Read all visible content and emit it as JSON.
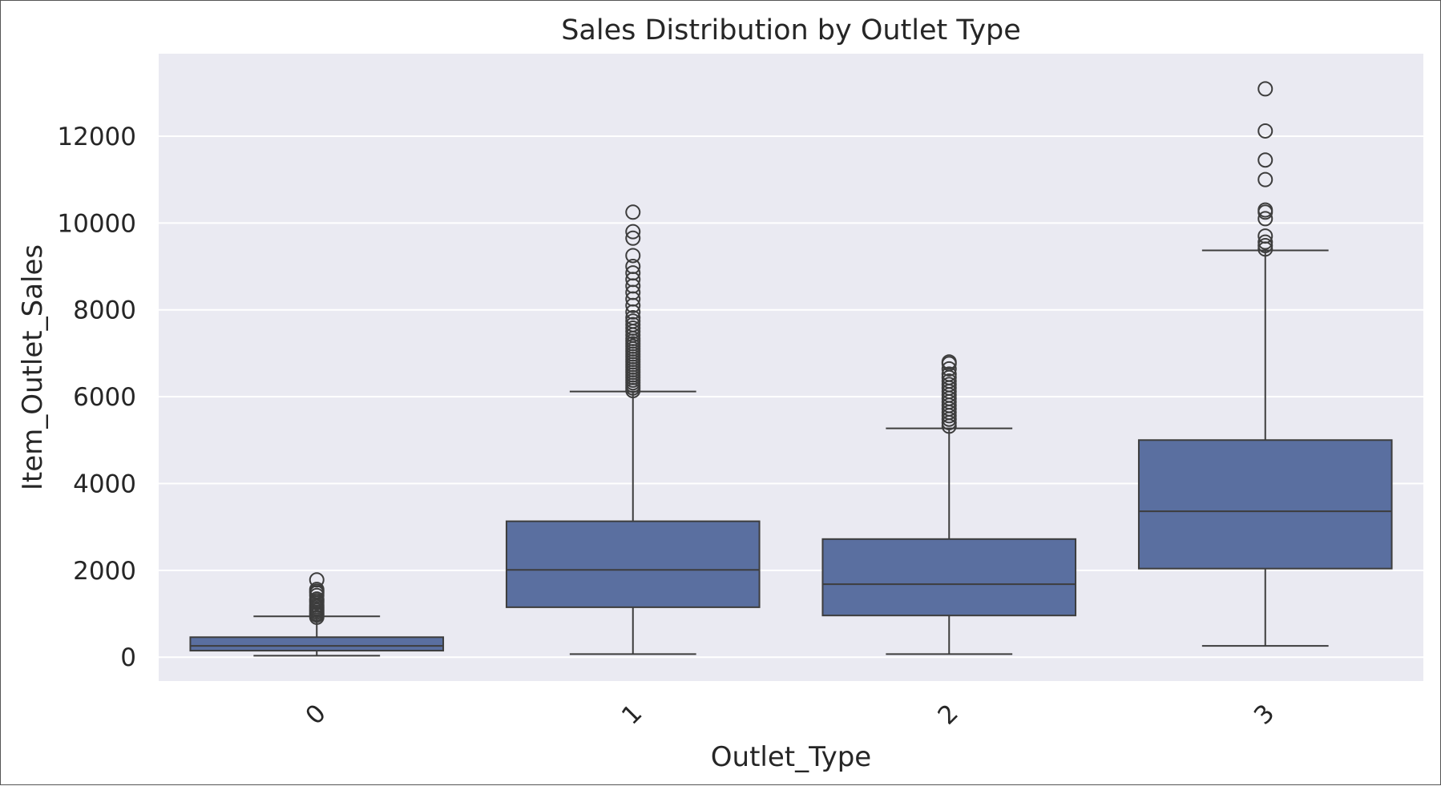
{
  "chart_data": {
    "type": "boxplot",
    "title": "Sales Distribution by Outlet Type",
    "xlabel": "Outlet_Type",
    "ylabel": "Item_Outlet_Sales",
    "ylim": [
      -550,
      13900
    ],
    "yticks": [
      0,
      2000,
      4000,
      6000,
      8000,
      10000,
      12000
    ],
    "ytick_labels": [
      "0",
      "2000",
      "4000",
      "6000",
      "8000",
      "10000",
      "12000"
    ],
    "categories": [
      "0",
      "1",
      "2",
      "3"
    ],
    "grid": true,
    "x_tick_rotation": 45,
    "box_color": "#5a6fa0",
    "line_color": "#3d3d3d",
    "background_color": "#eaeaf2",
    "boxes": [
      {
        "category": "0",
        "whisker_low": 33,
        "q1": 150,
        "median": 260,
        "q3": 460,
        "whisker_high": 940,
        "outliers": [
          920,
          970,
          1000,
          1040,
          1080,
          1120,
          1160,
          1200,
          1260,
          1300,
          1340,
          1420,
          1480,
          1520,
          1560,
          1780
        ]
      },
      {
        "category": "1",
        "whisker_low": 70,
        "q1": 1150,
        "median": 2010,
        "q3": 3130,
        "whisker_high": 6120,
        "outliers": [
          6140,
          6200,
          6260,
          6320,
          6380,
          6440,
          6500,
          6560,
          6620,
          6680,
          6740,
          6800,
          6860,
          6920,
          6980,
          7040,
          7100,
          7160,
          7220,
          7280,
          7340,
          7420,
          7500,
          7580,
          7660,
          7740,
          7820,
          7950,
          8100,
          8250,
          8400,
          8550,
          8700,
          8850,
          9000,
          9250,
          9650,
          9800,
          10250
        ]
      },
      {
        "category": "2",
        "whisker_low": 70,
        "q1": 960,
        "median": 1680,
        "q3": 2720,
        "whisker_high": 5270,
        "outliers": [
          5320,
          5400,
          5480,
          5560,
          5640,
          5720,
          5800,
          5880,
          5960,
          6040,
          6120,
          6200,
          6280,
          6360,
          6440,
          6520,
          6640,
          6760,
          6800
        ]
      },
      {
        "category": "3",
        "whisker_low": 260,
        "q1": 2040,
        "median": 3360,
        "q3": 5000,
        "whisker_high": 9370,
        "outliers": [
          9400,
          9480,
          9560,
          9700,
          10100,
          10250,
          10300,
          11000,
          11450,
          12120,
          13090
        ]
      }
    ]
  }
}
